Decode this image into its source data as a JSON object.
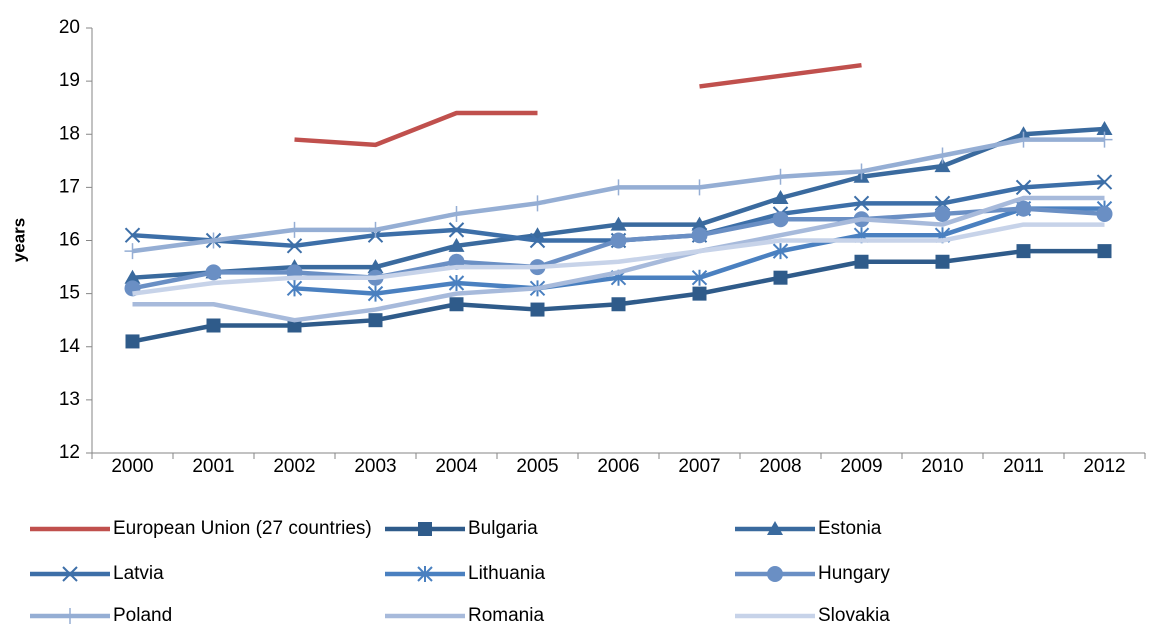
{
  "chart_data": {
    "type": "line",
    "y_label": "years",
    "categories": [
      "2000",
      "2001",
      "2002",
      "2003",
      "2004",
      "2005",
      "2006",
      "2007",
      "2008",
      "2009",
      "2010",
      "2011",
      "2012"
    ],
    "ylim": [
      12,
      20
    ],
    "yticks": [
      12,
      13,
      14,
      15,
      16,
      17,
      18,
      19,
      20
    ],
    "grid": false,
    "series": [
      {
        "name": "European Union (27 countries)",
        "color": "#c0504d",
        "marker": "none",
        "values": [
          null,
          null,
          17.9,
          17.8,
          18.4,
          18.4,
          null,
          18.9,
          19.1,
          19.3,
          null,
          null,
          null
        ]
      },
      {
        "name": "Bulgaria",
        "color": "#2f5b8a",
        "marker": "square",
        "values": [
          14.1,
          14.4,
          14.4,
          14.5,
          14.8,
          14.7,
          14.8,
          15.0,
          15.3,
          15.6,
          15.6,
          15.8,
          15.8
        ]
      },
      {
        "name": "Estonia",
        "color": "#3a6a9e",
        "marker": "triangle",
        "values": [
          15.3,
          15.4,
          15.5,
          15.5,
          15.9,
          16.1,
          16.3,
          16.3,
          16.8,
          17.2,
          17.4,
          18.0,
          18.1
        ]
      },
      {
        "name": "Latvia",
        "color": "#3d6fa8",
        "marker": "x",
        "values": [
          16.1,
          16.0,
          15.9,
          16.1,
          16.2,
          16.0,
          16.0,
          16.1,
          16.5,
          16.7,
          16.7,
          17.0,
          17.1
        ]
      },
      {
        "name": "Lithuania",
        "color": "#4a80c0",
        "marker": "asterisk",
        "values": [
          null,
          null,
          15.1,
          15.0,
          15.2,
          15.1,
          15.3,
          15.3,
          15.8,
          16.1,
          16.1,
          16.6,
          16.6
        ]
      },
      {
        "name": "Hungary",
        "color": "#6a8fc4",
        "marker": "circle",
        "values": [
          15.1,
          15.4,
          15.4,
          15.3,
          15.6,
          15.5,
          16.0,
          16.1,
          16.4,
          16.4,
          16.5,
          16.6,
          16.5
        ]
      },
      {
        "name": "Poland",
        "color": "#95aed4",
        "marker": "plus",
        "values": [
          15.8,
          16.0,
          16.2,
          16.2,
          16.5,
          16.7,
          17.0,
          17.0,
          17.2,
          17.3,
          17.6,
          17.9,
          17.9
        ]
      },
      {
        "name": "Romania",
        "color": "#a7badb",
        "marker": "none",
        "values": [
          14.8,
          14.8,
          14.5,
          14.7,
          15.0,
          15.1,
          15.4,
          15.8,
          16.1,
          16.4,
          16.3,
          16.8,
          16.8
        ]
      },
      {
        "name": "Slovakia",
        "color": "#c7d3e9",
        "marker": "none",
        "values": [
          15.0,
          15.2,
          15.3,
          15.3,
          15.5,
          15.5,
          15.6,
          15.8,
          16.0,
          16.0,
          16.0,
          16.3,
          16.3
        ]
      }
    ]
  }
}
